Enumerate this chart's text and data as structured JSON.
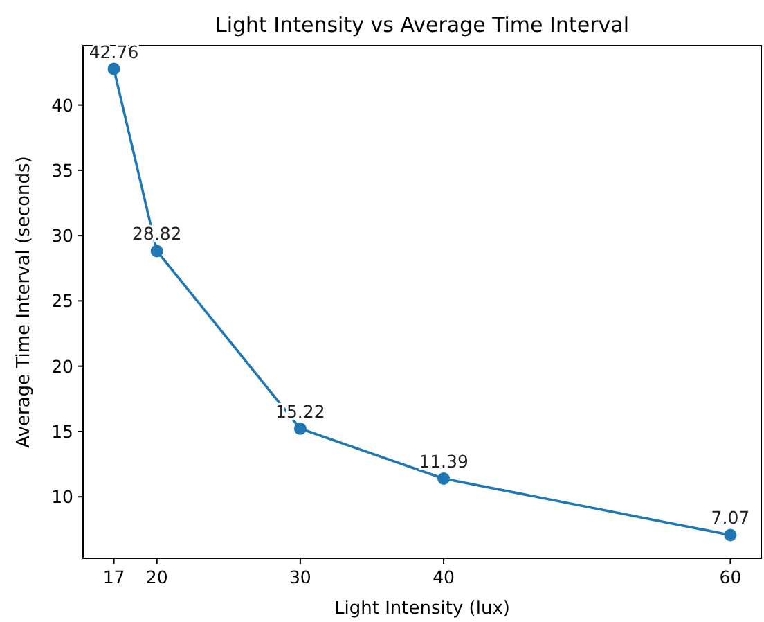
{
  "chart_data": {
    "type": "line",
    "title": "Light Intensity vs Average Time Interval",
    "xlabel": "Light Intensity (lux)",
    "ylabel": "Average Time Interval (seconds)",
    "x": [
      17,
      20,
      30,
      40,
      60
    ],
    "series": [
      {
        "color": "#1f77b4",
        "values": [
          42.76,
          28.82,
          15.22,
          11.39,
          7.07
        ]
      }
    ],
    "xlim": [
      14.85,
      62.15
    ],
    "xticks": [
      17,
      20,
      30,
      40,
      60
    ],
    "ylim": [
      5.29,
      44.54
    ],
    "yticks": [
      10,
      15,
      20,
      25,
      30,
      35,
      40
    ],
    "marker": "circle",
    "line_style": "solid",
    "grid": false,
    "data_labels": true
  }
}
